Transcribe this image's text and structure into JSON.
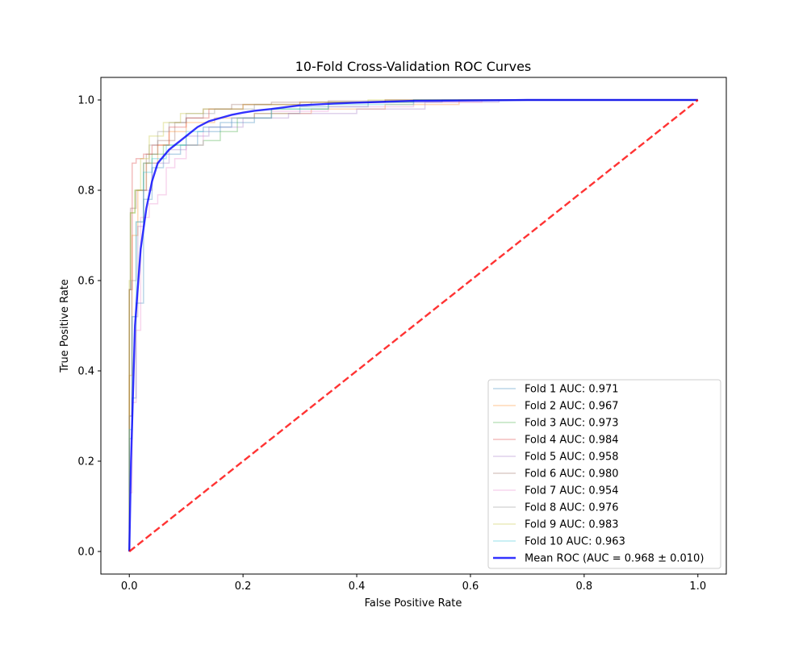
{
  "chart_data": {
    "type": "line",
    "title": "10-Fold Cross-Validation ROC Curves",
    "xlabel": "False Positive Rate",
    "ylabel": "True Positive Rate",
    "xlim": [
      -0.05,
      1.05
    ],
    "ylim": [
      -0.05,
      1.05
    ],
    "x_ticks": [
      0.0,
      0.2,
      0.4,
      0.6,
      0.8,
      1.0
    ],
    "y_ticks": [
      0.0,
      0.2,
      0.4,
      0.6,
      0.8,
      1.0
    ],
    "x_tick_labels": [
      "0.0",
      "0.2",
      "0.4",
      "0.6",
      "0.8",
      "1.0"
    ],
    "y_tick_labels": [
      "0.0",
      "0.2",
      "0.4",
      "0.6",
      "0.8",
      "1.0"
    ],
    "grid": false,
    "legend_position": "lower-right",
    "series": [
      {
        "name": "Fold 1 AUC: 0.971",
        "color": "#1f77b4",
        "style": "step",
        "x": [
          0,
          0,
          0.005,
          0.005,
          0.012,
          0.012,
          0.025,
          0.025,
          0.04,
          0.04,
          0.06,
          0.06,
          0.09,
          0.09,
          0.12,
          0.12,
          0.16,
          0.16,
          0.22,
          0.22,
          0.3,
          0.3,
          0.42,
          0.42,
          0.55,
          0.55,
          1.0
        ],
        "y": [
          0,
          0.25,
          0.25,
          0.34,
          0.34,
          0.55,
          0.55,
          0.78,
          0.78,
          0.85,
          0.85,
          0.88,
          0.88,
          0.9,
          0.9,
          0.93,
          0.93,
          0.95,
          0.95,
          0.97,
          0.97,
          0.985,
          0.985,
          0.995,
          0.995,
          1.0,
          1.0
        ]
      },
      {
        "name": "Fold 2 AUC: 0.967",
        "color": "#ff7f0e",
        "style": "step",
        "x": [
          0,
          0,
          0.005,
          0.005,
          0.015,
          0.015,
          0.03,
          0.03,
          0.05,
          0.05,
          0.07,
          0.07,
          0.1,
          0.1,
          0.15,
          0.15,
          0.22,
          0.22,
          0.32,
          0.32,
          0.45,
          0.45,
          0.58,
          0.58,
          1.0
        ],
        "y": [
          0,
          0.39,
          0.39,
          0.7,
          0.7,
          0.8,
          0.8,
          0.86,
          0.86,
          0.9,
          0.9,
          0.93,
          0.93,
          0.95,
          0.95,
          0.96,
          0.96,
          0.97,
          0.97,
          0.98,
          0.98,
          0.99,
          0.99,
          1.0,
          1.0
        ]
      },
      {
        "name": "Fold 3 AUC: 0.973",
        "color": "#2ca02c",
        "style": "step",
        "x": [
          0,
          0,
          0.002,
          0.002,
          0.01,
          0.01,
          0.025,
          0.025,
          0.04,
          0.04,
          0.06,
          0.06,
          0.1,
          0.1,
          0.13,
          0.13,
          0.16,
          0.16,
          0.19,
          0.19,
          0.25,
          0.25,
          0.35,
          0.35,
          0.5,
          0.5,
          1.0
        ],
        "y": [
          0,
          0.58,
          0.58,
          0.75,
          0.75,
          0.8,
          0.8,
          0.86,
          0.86,
          0.88,
          0.88,
          0.9,
          0.9,
          0.9,
          0.9,
          0.91,
          0.91,
          0.93,
          0.93,
          0.96,
          0.96,
          0.98,
          0.98,
          0.995,
          0.995,
          1.0,
          1.0
        ]
      },
      {
        "name": "Fold 4 AUC: 0.984",
        "color": "#d62728",
        "style": "step",
        "x": [
          0,
          0,
          0.005,
          0.005,
          0.012,
          0.012,
          0.025,
          0.025,
          0.04,
          0.04,
          0.07,
          0.07,
          0.1,
          0.1,
          0.14,
          0.14,
          0.2,
          0.2,
          0.3,
          0.3,
          0.45,
          0.45,
          1.0
        ],
        "y": [
          0,
          0.58,
          0.58,
          0.86,
          0.86,
          0.87,
          0.87,
          0.88,
          0.88,
          0.9,
          0.9,
          0.94,
          0.94,
          0.96,
          0.96,
          0.98,
          0.98,
          0.99,
          0.99,
          0.995,
          0.995,
          1.0,
          1.0
        ]
      },
      {
        "name": "Fold 5 AUC: 0.958",
        "color": "#9467bd",
        "style": "step",
        "x": [
          0,
          0,
          0.005,
          0.005,
          0.015,
          0.015,
          0.025,
          0.025,
          0.04,
          0.04,
          0.07,
          0.07,
          0.1,
          0.1,
          0.14,
          0.14,
          0.2,
          0.2,
          0.28,
          0.28,
          0.4,
          0.4,
          0.52,
          0.52,
          0.65,
          0.65,
          1.0
        ],
        "y": [
          0,
          0.3,
          0.3,
          0.52,
          0.52,
          0.72,
          0.72,
          0.8,
          0.8,
          0.86,
          0.86,
          0.89,
          0.89,
          0.92,
          0.92,
          0.94,
          0.94,
          0.96,
          0.96,
          0.97,
          0.97,
          0.98,
          0.98,
          0.995,
          0.995,
          1.0,
          1.0
        ]
      },
      {
        "name": "Fold 6 AUC: 0.980",
        "color": "#8c564b",
        "style": "step",
        "x": [
          0,
          0,
          0.002,
          0.002,
          0.012,
          0.012,
          0.03,
          0.03,
          0.05,
          0.05,
          0.08,
          0.08,
          0.1,
          0.1,
          0.13,
          0.13,
          0.18,
          0.18,
          0.25,
          0.25,
          0.35,
          0.35,
          0.5,
          0.5,
          1.0
        ],
        "y": [
          0,
          0.58,
          0.58,
          0.76,
          0.76,
          0.8,
          0.8,
          0.88,
          0.88,
          0.91,
          0.91,
          0.95,
          0.95,
          0.96,
          0.96,
          0.98,
          0.98,
          0.99,
          0.99,
          0.995,
          0.995,
          0.998,
          0.998,
          1.0,
          1.0
        ]
      },
      {
        "name": "Fold 7 AUC: 0.954",
        "color": "#e377c2",
        "style": "step",
        "x": [
          0,
          0,
          0.005,
          0.005,
          0.012,
          0.012,
          0.02,
          0.02,
          0.035,
          0.035,
          0.05,
          0.05,
          0.065,
          0.065,
          0.08,
          0.08,
          0.1,
          0.1,
          0.13,
          0.13,
          0.18,
          0.18,
          0.25,
          0.25,
          0.35,
          0.35,
          0.5,
          0.5,
          0.62,
          0.62,
          1.0
        ],
        "y": [
          0,
          0.13,
          0.13,
          0.33,
          0.33,
          0.49,
          0.49,
          0.74,
          0.74,
          0.77,
          0.77,
          0.79,
          0.79,
          0.85,
          0.85,
          0.87,
          0.87,
          0.9,
          0.9,
          0.94,
          0.94,
          0.96,
          0.96,
          0.975,
          0.975,
          0.985,
          0.985,
          0.995,
          0.995,
          1.0,
          1.0
        ]
      },
      {
        "name": "Fold 8 AUC: 0.976",
        "color": "#7f7f7f",
        "style": "step",
        "x": [
          0,
          0,
          0.004,
          0.004,
          0.012,
          0.012,
          0.025,
          0.025,
          0.035,
          0.035,
          0.05,
          0.05,
          0.07,
          0.07,
          0.1,
          0.1,
          0.15,
          0.15,
          0.22,
          0.22,
          0.32,
          0.32,
          0.45,
          0.45,
          1.0
        ],
        "y": [
          0,
          0.3,
          0.3,
          0.6,
          0.6,
          0.73,
          0.73,
          0.86,
          0.86,
          0.9,
          0.9,
          0.93,
          0.93,
          0.95,
          0.95,
          0.97,
          0.97,
          0.98,
          0.98,
          0.99,
          0.99,
          0.995,
          0.995,
          1.0,
          1.0
        ]
      },
      {
        "name": "Fold 9 AUC: 0.983",
        "color": "#bcbd22",
        "style": "step",
        "x": [
          0,
          0,
          0.002,
          0.002,
          0.01,
          0.01,
          0.02,
          0.02,
          0.035,
          0.035,
          0.06,
          0.06,
          0.09,
          0.09,
          0.13,
          0.13,
          0.2,
          0.2,
          0.3,
          0.3,
          0.42,
          0.42,
          1.0
        ],
        "y": [
          0,
          0.6,
          0.6,
          0.75,
          0.75,
          0.8,
          0.8,
          0.87,
          0.87,
          0.92,
          0.92,
          0.95,
          0.95,
          0.97,
          0.97,
          0.98,
          0.98,
          0.99,
          0.99,
          0.995,
          0.995,
          1.0,
          1.0
        ]
      },
      {
        "name": "Fold 10 AUC: 0.963",
        "color": "#17becf",
        "style": "step",
        "x": [
          0,
          0,
          0.005,
          0.005,
          0.012,
          0.012,
          0.025,
          0.025,
          0.04,
          0.04,
          0.065,
          0.065,
          0.1,
          0.1,
          0.13,
          0.13,
          0.18,
          0.18,
          0.25,
          0.25,
          0.35,
          0.35,
          0.5,
          0.5,
          1.0
        ],
        "y": [
          0,
          0.27,
          0.27,
          0.52,
          0.52,
          0.73,
          0.73,
          0.84,
          0.84,
          0.87,
          0.87,
          0.9,
          0.9,
          0.93,
          0.93,
          0.94,
          0.94,
          0.96,
          0.96,
          0.98,
          0.98,
          0.99,
          0.99,
          1.0,
          1.0
        ]
      },
      {
        "name": "Mean ROC (AUC = 0.968 ± 0.010)",
        "color": "#0000ff",
        "style": "mean",
        "x": [
          0,
          0.003,
          0.01,
          0.02,
          0.03,
          0.04,
          0.05,
          0.06,
          0.07,
          0.08,
          0.09,
          0.1,
          0.12,
          0.14,
          0.16,
          0.18,
          0.2,
          0.22,
          0.25,
          0.28,
          0.3,
          0.33,
          0.36,
          0.4,
          0.45,
          0.5,
          0.6,
          0.7,
          0.8,
          0.9,
          1.0
        ],
        "y": [
          0,
          0.2,
          0.5,
          0.67,
          0.76,
          0.82,
          0.86,
          0.875,
          0.89,
          0.9,
          0.91,
          0.92,
          0.94,
          0.953,
          0.96,
          0.967,
          0.972,
          0.976,
          0.98,
          0.985,
          0.988,
          0.99,
          0.992,
          0.994,
          0.996,
          0.998,
          0.999,
          1.0,
          1.0,
          1.0,
          1.0
        ]
      },
      {
        "name": "",
        "color": "#ff0000",
        "style": "chance",
        "x": [
          0,
          1
        ],
        "y": [
          0,
          1
        ]
      }
    ]
  }
}
